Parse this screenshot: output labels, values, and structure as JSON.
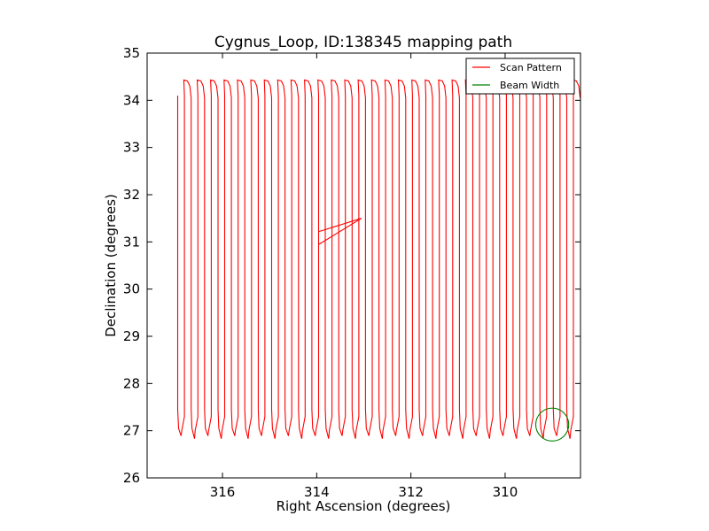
{
  "chart_data": {
    "type": "line",
    "title": "Cygnus_Loop, ID:138345 mapping path",
    "xlabel": "Right Ascension (degrees)",
    "ylabel": "Declination (degrees)",
    "xlim": [
      317.6,
      308.4
    ],
    "ylim": [
      26,
      35
    ],
    "x_inverted": true,
    "xticks": [
      316,
      314,
      312,
      310
    ],
    "yticks": [
      26,
      27,
      28,
      29,
      30,
      31,
      32,
      33,
      34,
      35
    ],
    "grid": false,
    "legend_placement": "top-right",
    "series": [
      {
        "name": "Scan Pattern",
        "color": "#ff0000",
        "scan": {
          "ra_start": 316.95,
          "ra_end": 308.55,
          "legs": 30,
          "dec_low": 26.95,
          "dec_high": 34.43
        },
        "spur": [
          [
            313.95,
            30.95
          ],
          [
            313.05,
            31.5
          ],
          [
            313.95,
            31.22
          ]
        ]
      },
      {
        "name": "Beam Width",
        "color": "#008000",
        "circle": {
          "ra": 309.0,
          "dec": 27.13,
          "radius_deg": 0.35
        }
      }
    ]
  }
}
